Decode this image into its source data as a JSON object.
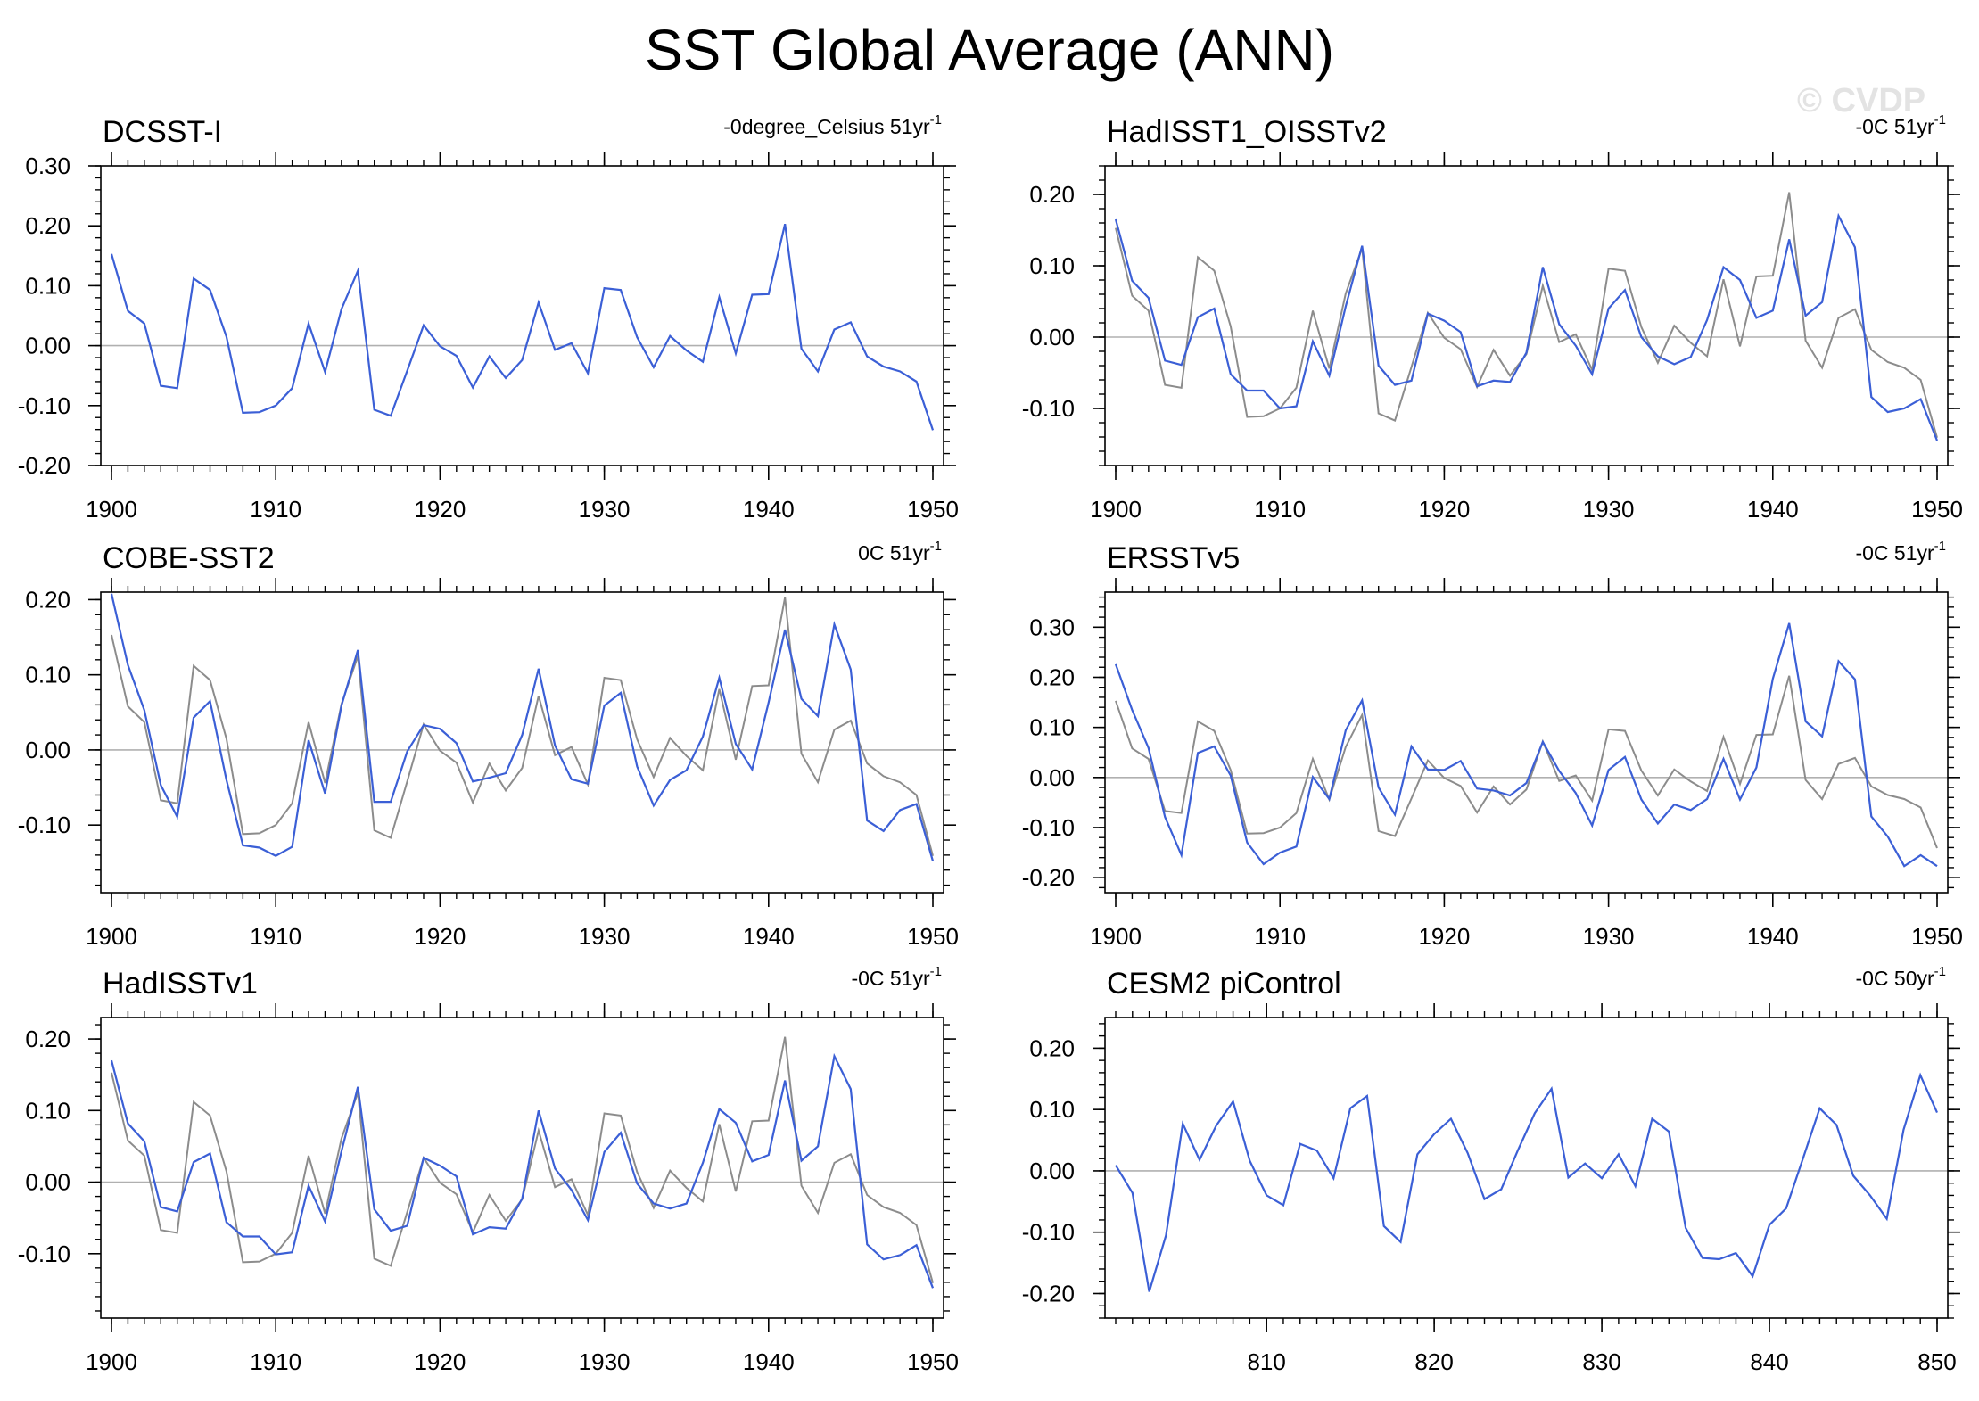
{
  "title": "SST Global Average (ANN)",
  "watermark": "© CVDP",
  "colors": {
    "primary_series": "#3b5fd6",
    "reference_series": "#8c8c8c",
    "zero_line": "#b0b0b0",
    "frame": "#000000"
  },
  "chart_data": [
    {
      "type": "line",
      "title": "DCSST-I",
      "units_label": "-0degree_Celsius 51yr",
      "units_superscript": "-1",
      "x": [
        1900,
        1901,
        1902,
        1903,
        1904,
        1905,
        1906,
        1907,
        1908,
        1909,
        1910,
        1911,
        1912,
        1913,
        1914,
        1915,
        1916,
        1917,
        1918,
        1919,
        1920,
        1921,
        1922,
        1923,
        1924,
        1925,
        1926,
        1927,
        1928,
        1929,
        1930,
        1931,
        1932,
        1933,
        1934,
        1935,
        1936,
        1937,
        1938,
        1939,
        1940,
        1941,
        1942,
        1943,
        1944,
        1945,
        1946,
        1947,
        1948,
        1949,
        1950
      ],
      "xlim": [
        1900,
        1950
      ],
      "xticks": [
        1900,
        1910,
        1920,
        1930,
        1940,
        1950
      ],
      "ylim": [
        -0.2,
        0.3
      ],
      "yticks": [
        -0.2,
        -0.1,
        0.0,
        0.1,
        0.2,
        0.3
      ],
      "series": [
        {
          "name": "DCSST-I",
          "color": "#3b5fd6",
          "values": [
            0.153,
            0.058,
            0.037,
            -0.067,
            -0.071,
            0.112,
            0.093,
            0.015,
            -0.112,
            -0.111,
            -0.1,
            -0.071,
            0.037,
            -0.044,
            0.061,
            0.125,
            -0.107,
            -0.117,
            -0.042,
            0.034,
            -0.001,
            -0.017,
            -0.07,
            -0.018,
            -0.054,
            -0.024,
            0.072,
            -0.007,
            0.004,
            -0.046,
            0.096,
            0.093,
            0.014,
            -0.036,
            0.016,
            -0.008,
            -0.027,
            0.081,
            -0.013,
            0.085,
            0.086,
            0.203,
            -0.005,
            -0.043,
            0.027,
            0.039,
            -0.018,
            -0.035,
            -0.043,
            -0.06,
            -0.141
          ]
        }
      ]
    },
    {
      "type": "line",
      "title": "HadISST1_OISSTv2",
      "units_label": "-0C 51yr",
      "units_superscript": "-1",
      "x": [
        1900,
        1901,
        1902,
        1903,
        1904,
        1905,
        1906,
        1907,
        1908,
        1909,
        1910,
        1911,
        1912,
        1913,
        1914,
        1915,
        1916,
        1917,
        1918,
        1919,
        1920,
        1921,
        1922,
        1923,
        1924,
        1925,
        1926,
        1927,
        1928,
        1929,
        1930,
        1931,
        1932,
        1933,
        1934,
        1935,
        1936,
        1937,
        1938,
        1939,
        1940,
        1941,
        1942,
        1943,
        1944,
        1945,
        1946,
        1947,
        1948,
        1949,
        1950
      ],
      "xlim": [
        1900,
        1950
      ],
      "xticks": [
        1900,
        1910,
        1920,
        1930,
        1940,
        1950
      ],
      "ylim": [
        -0.18,
        0.24
      ],
      "yticks": [
        -0.1,
        0.0,
        0.1,
        0.2
      ],
      "series": [
        {
          "name": "DCSST-I",
          "color": "#8c8c8c",
          "values": [
            0.153,
            0.058,
            0.037,
            -0.067,
            -0.071,
            0.112,
            0.093,
            0.015,
            -0.112,
            -0.111,
            -0.1,
            -0.071,
            0.037,
            -0.044,
            0.061,
            0.125,
            -0.107,
            -0.117,
            -0.042,
            0.034,
            -0.001,
            -0.017,
            -0.07,
            -0.018,
            -0.054,
            -0.024,
            0.072,
            -0.007,
            0.004,
            -0.046,
            0.096,
            0.093,
            0.014,
            -0.036,
            0.016,
            -0.008,
            -0.027,
            0.081,
            -0.013,
            0.085,
            0.086,
            0.203,
            -0.005,
            -0.043,
            0.027,
            0.039,
            -0.018,
            -0.035,
            -0.043,
            -0.06,
            -0.141
          ]
        },
        {
          "name": "HadISST1_OISSTv2",
          "color": "#3b5fd6",
          "values": [
            0.165,
            0.079,
            0.055,
            -0.033,
            -0.039,
            0.028,
            0.04,
            -0.052,
            -0.075,
            -0.075,
            -0.1,
            -0.097,
            -0.006,
            -0.054,
            0.043,
            0.128,
            -0.04,
            -0.067,
            -0.061,
            0.033,
            0.023,
            0.007,
            -0.069,
            -0.061,
            -0.063,
            -0.022,
            0.098,
            0.018,
            -0.012,
            -0.052,
            0.04,
            0.066,
            0.0,
            -0.027,
            -0.038,
            -0.028,
            0.024,
            0.098,
            0.08,
            0.027,
            0.037,
            0.137,
            0.03,
            0.049,
            0.17,
            0.126,
            -0.084,
            -0.105,
            -0.1,
            -0.087,
            -0.145
          ]
        }
      ]
    },
    {
      "type": "line",
      "title": "COBE-SST2",
      "units_label": "0C 51yr",
      "units_superscript": "-1",
      "x": [
        1900,
        1901,
        1902,
        1903,
        1904,
        1905,
        1906,
        1907,
        1908,
        1909,
        1910,
        1911,
        1912,
        1913,
        1914,
        1915,
        1916,
        1917,
        1918,
        1919,
        1920,
        1921,
        1922,
        1923,
        1924,
        1925,
        1926,
        1927,
        1928,
        1929,
        1930,
        1931,
        1932,
        1933,
        1934,
        1935,
        1936,
        1937,
        1938,
        1939,
        1940,
        1941,
        1942,
        1943,
        1944,
        1945,
        1946,
        1947,
        1948,
        1949,
        1950
      ],
      "xlim": [
        1900,
        1950
      ],
      "xticks": [
        1900,
        1910,
        1920,
        1930,
        1940,
        1950
      ],
      "ylim": [
        -0.19,
        0.21
      ],
      "yticks": [
        -0.1,
        0.0,
        0.1,
        0.2
      ],
      "series": [
        {
          "name": "DCSST-I",
          "color": "#8c8c8c",
          "values": [
            0.153,
            0.058,
            0.037,
            -0.067,
            -0.071,
            0.112,
            0.093,
            0.015,
            -0.112,
            -0.111,
            -0.1,
            -0.071,
            0.037,
            -0.044,
            0.061,
            0.125,
            -0.107,
            -0.117,
            -0.042,
            0.034,
            -0.001,
            -0.017,
            -0.07,
            -0.018,
            -0.054,
            -0.024,
            0.072,
            -0.007,
            0.004,
            -0.046,
            0.096,
            0.093,
            0.014,
            -0.036,
            0.016,
            -0.008,
            -0.027,
            0.081,
            -0.013,
            0.085,
            0.086,
            0.203,
            -0.005,
            -0.043,
            0.027,
            0.039,
            -0.018,
            -0.035,
            -0.043,
            -0.06,
            -0.141
          ]
        },
        {
          "name": "COBE-SST2",
          "color": "#3b5fd6",
          "values": [
            0.208,
            0.113,
            0.053,
            -0.047,
            -0.089,
            0.043,
            0.065,
            -0.04,
            -0.127,
            -0.13,
            -0.141,
            -0.129,
            0.013,
            -0.058,
            0.059,
            0.133,
            -0.069,
            -0.069,
            -0.002,
            0.033,
            0.028,
            0.009,
            -0.042,
            -0.037,
            -0.031,
            0.02,
            0.108,
            0.006,
            -0.039,
            -0.045,
            0.059,
            0.076,
            -0.022,
            -0.074,
            -0.04,
            -0.027,
            0.018,
            0.096,
            0.008,
            -0.026,
            0.063,
            0.16,
            0.068,
            0.045,
            0.167,
            0.107,
            -0.094,
            -0.108,
            -0.08,
            -0.072,
            -0.148
          ]
        }
      ]
    },
    {
      "type": "line",
      "title": "ERSSTv5",
      "units_label": "-0C 51yr",
      "units_superscript": "-1",
      "x": [
        1900,
        1901,
        1902,
        1903,
        1904,
        1905,
        1906,
        1907,
        1908,
        1909,
        1910,
        1911,
        1912,
        1913,
        1914,
        1915,
        1916,
        1917,
        1918,
        1919,
        1920,
        1921,
        1922,
        1923,
        1924,
        1925,
        1926,
        1927,
        1928,
        1929,
        1930,
        1931,
        1932,
        1933,
        1934,
        1935,
        1936,
        1937,
        1938,
        1939,
        1940,
        1941,
        1942,
        1943,
        1944,
        1945,
        1946,
        1947,
        1948,
        1949,
        1950
      ],
      "xlim": [
        1900,
        1950
      ],
      "xticks": [
        1900,
        1910,
        1920,
        1930,
        1940,
        1950
      ],
      "ylim": [
        -0.23,
        0.37
      ],
      "yticks": [
        -0.2,
        -0.1,
        0.0,
        0.1,
        0.2,
        0.3
      ],
      "series": [
        {
          "name": "DCSST-I",
          "color": "#8c8c8c",
          "values": [
            0.153,
            0.058,
            0.037,
            -0.067,
            -0.071,
            0.112,
            0.093,
            0.015,
            -0.112,
            -0.111,
            -0.1,
            -0.071,
            0.037,
            -0.044,
            0.061,
            0.125,
            -0.107,
            -0.117,
            -0.042,
            0.034,
            -0.001,
            -0.017,
            -0.07,
            -0.018,
            -0.054,
            -0.024,
            0.072,
            -0.007,
            0.004,
            -0.046,
            0.096,
            0.093,
            0.014,
            -0.036,
            0.016,
            -0.008,
            -0.027,
            0.081,
            -0.013,
            0.085,
            0.086,
            0.203,
            -0.005,
            -0.043,
            0.027,
            0.039,
            -0.018,
            -0.035,
            -0.043,
            -0.06,
            -0.141
          ]
        },
        {
          "name": "ERSSTv5",
          "color": "#3b5fd6",
          "values": [
            0.226,
            0.135,
            0.059,
            -0.079,
            -0.155,
            0.049,
            0.062,
            0.004,
            -0.13,
            -0.173,
            -0.15,
            -0.138,
            0.001,
            -0.043,
            0.094,
            0.154,
            -0.02,
            -0.074,
            0.062,
            0.016,
            0.015,
            0.033,
            -0.022,
            -0.026,
            -0.036,
            -0.011,
            0.071,
            0.013,
            -0.031,
            -0.096,
            0.015,
            0.041,
            -0.044,
            -0.092,
            -0.054,
            -0.065,
            -0.043,
            0.037,
            -0.044,
            0.02,
            0.197,
            0.308,
            0.112,
            0.082,
            0.232,
            0.196,
            -0.078,
            -0.118,
            -0.177,
            -0.155,
            -0.177
          ]
        }
      ]
    },
    {
      "type": "line",
      "title": "HadISSTv1",
      "units_label": "-0C 51yr",
      "units_superscript": "-1",
      "x": [
        1900,
        1901,
        1902,
        1903,
        1904,
        1905,
        1906,
        1907,
        1908,
        1909,
        1910,
        1911,
        1912,
        1913,
        1914,
        1915,
        1916,
        1917,
        1918,
        1919,
        1920,
        1921,
        1922,
        1923,
        1924,
        1925,
        1926,
        1927,
        1928,
        1929,
        1930,
        1931,
        1932,
        1933,
        1934,
        1935,
        1936,
        1937,
        1938,
        1939,
        1940,
        1941,
        1942,
        1943,
        1944,
        1945,
        1946,
        1947,
        1948,
        1949,
        1950
      ],
      "xlim": [
        1900,
        1950
      ],
      "xticks": [
        1900,
        1910,
        1920,
        1930,
        1940,
        1950
      ],
      "ylim": [
        -0.19,
        0.23
      ],
      "yticks": [
        -0.1,
        0.0,
        0.1,
        0.2
      ],
      "series": [
        {
          "name": "DCSST-I",
          "color": "#8c8c8c",
          "values": [
            0.153,
            0.058,
            0.037,
            -0.067,
            -0.071,
            0.112,
            0.093,
            0.015,
            -0.112,
            -0.111,
            -0.1,
            -0.071,
            0.037,
            -0.044,
            0.061,
            0.125,
            -0.107,
            -0.117,
            -0.042,
            0.034,
            -0.001,
            -0.017,
            -0.07,
            -0.018,
            -0.054,
            -0.024,
            0.072,
            -0.007,
            0.004,
            -0.046,
            0.096,
            0.093,
            0.014,
            -0.036,
            0.016,
            -0.008,
            -0.027,
            0.081,
            -0.013,
            0.085,
            0.086,
            0.203,
            -0.005,
            -0.043,
            0.027,
            0.039,
            -0.018,
            -0.035,
            -0.043,
            -0.06,
            -0.141
          ]
        },
        {
          "name": "HadISSTv1",
          "color": "#3b5fd6",
          "values": [
            0.17,
            0.082,
            0.057,
            -0.035,
            -0.041,
            0.028,
            0.04,
            -0.056,
            -0.076,
            -0.076,
            -0.101,
            -0.098,
            -0.005,
            -0.055,
            0.043,
            0.133,
            -0.038,
            -0.068,
            -0.061,
            0.034,
            0.023,
            0.008,
            -0.073,
            -0.063,
            -0.065,
            -0.023,
            0.1,
            0.019,
            -0.011,
            -0.053,
            0.042,
            0.069,
            -0.002,
            -0.03,
            -0.037,
            -0.03,
            0.027,
            0.102,
            0.083,
            0.029,
            0.038,
            0.142,
            0.03,
            0.05,
            0.176,
            0.13,
            -0.087,
            -0.108,
            -0.102,
            -0.088,
            -0.148
          ]
        }
      ]
    },
    {
      "type": "line",
      "title": "CESM2 piControl",
      "units_label": "-0C 50yr",
      "units_superscript": "-1",
      "x": [
        801,
        802,
        803,
        804,
        805,
        806,
        807,
        808,
        809,
        810,
        811,
        812,
        813,
        814,
        815,
        816,
        817,
        818,
        819,
        820,
        821,
        822,
        823,
        824,
        825,
        826,
        827,
        828,
        829,
        830,
        831,
        832,
        833,
        834,
        835,
        836,
        837,
        838,
        839,
        840,
        841,
        842,
        843,
        844,
        845,
        846,
        847,
        848,
        849,
        850
      ],
      "xlim": [
        801,
        850
      ],
      "xticks": [
        810,
        820,
        830,
        840,
        850
      ],
      "ylim": [
        -0.24,
        0.25
      ],
      "yticks": [
        -0.2,
        -0.1,
        0.0,
        0.1,
        0.2
      ],
      "series": [
        {
          "name": "CESM2 piControl",
          "color": "#3b5fd6",
          "values": [
            0.009,
            -0.036,
            -0.197,
            -0.105,
            0.077,
            0.018,
            0.074,
            0.113,
            0.016,
            -0.04,
            -0.056,
            0.044,
            0.033,
            -0.012,
            0.102,
            0.122,
            -0.09,
            -0.116,
            0.027,
            0.06,
            0.085,
            0.029,
            -0.046,
            -0.03,
            0.034,
            0.094,
            0.134,
            -0.011,
            0.012,
            -0.012,
            0.027,
            -0.025,
            0.085,
            0.064,
            -0.093,
            -0.142,
            -0.144,
            -0.134,
            -0.172,
            -0.088,
            -0.061,
            0.02,
            0.102,
            0.075,
            -0.008,
            -0.04,
            -0.078,
            0.067,
            0.156,
            0.095
          ]
        }
      ]
    }
  ]
}
